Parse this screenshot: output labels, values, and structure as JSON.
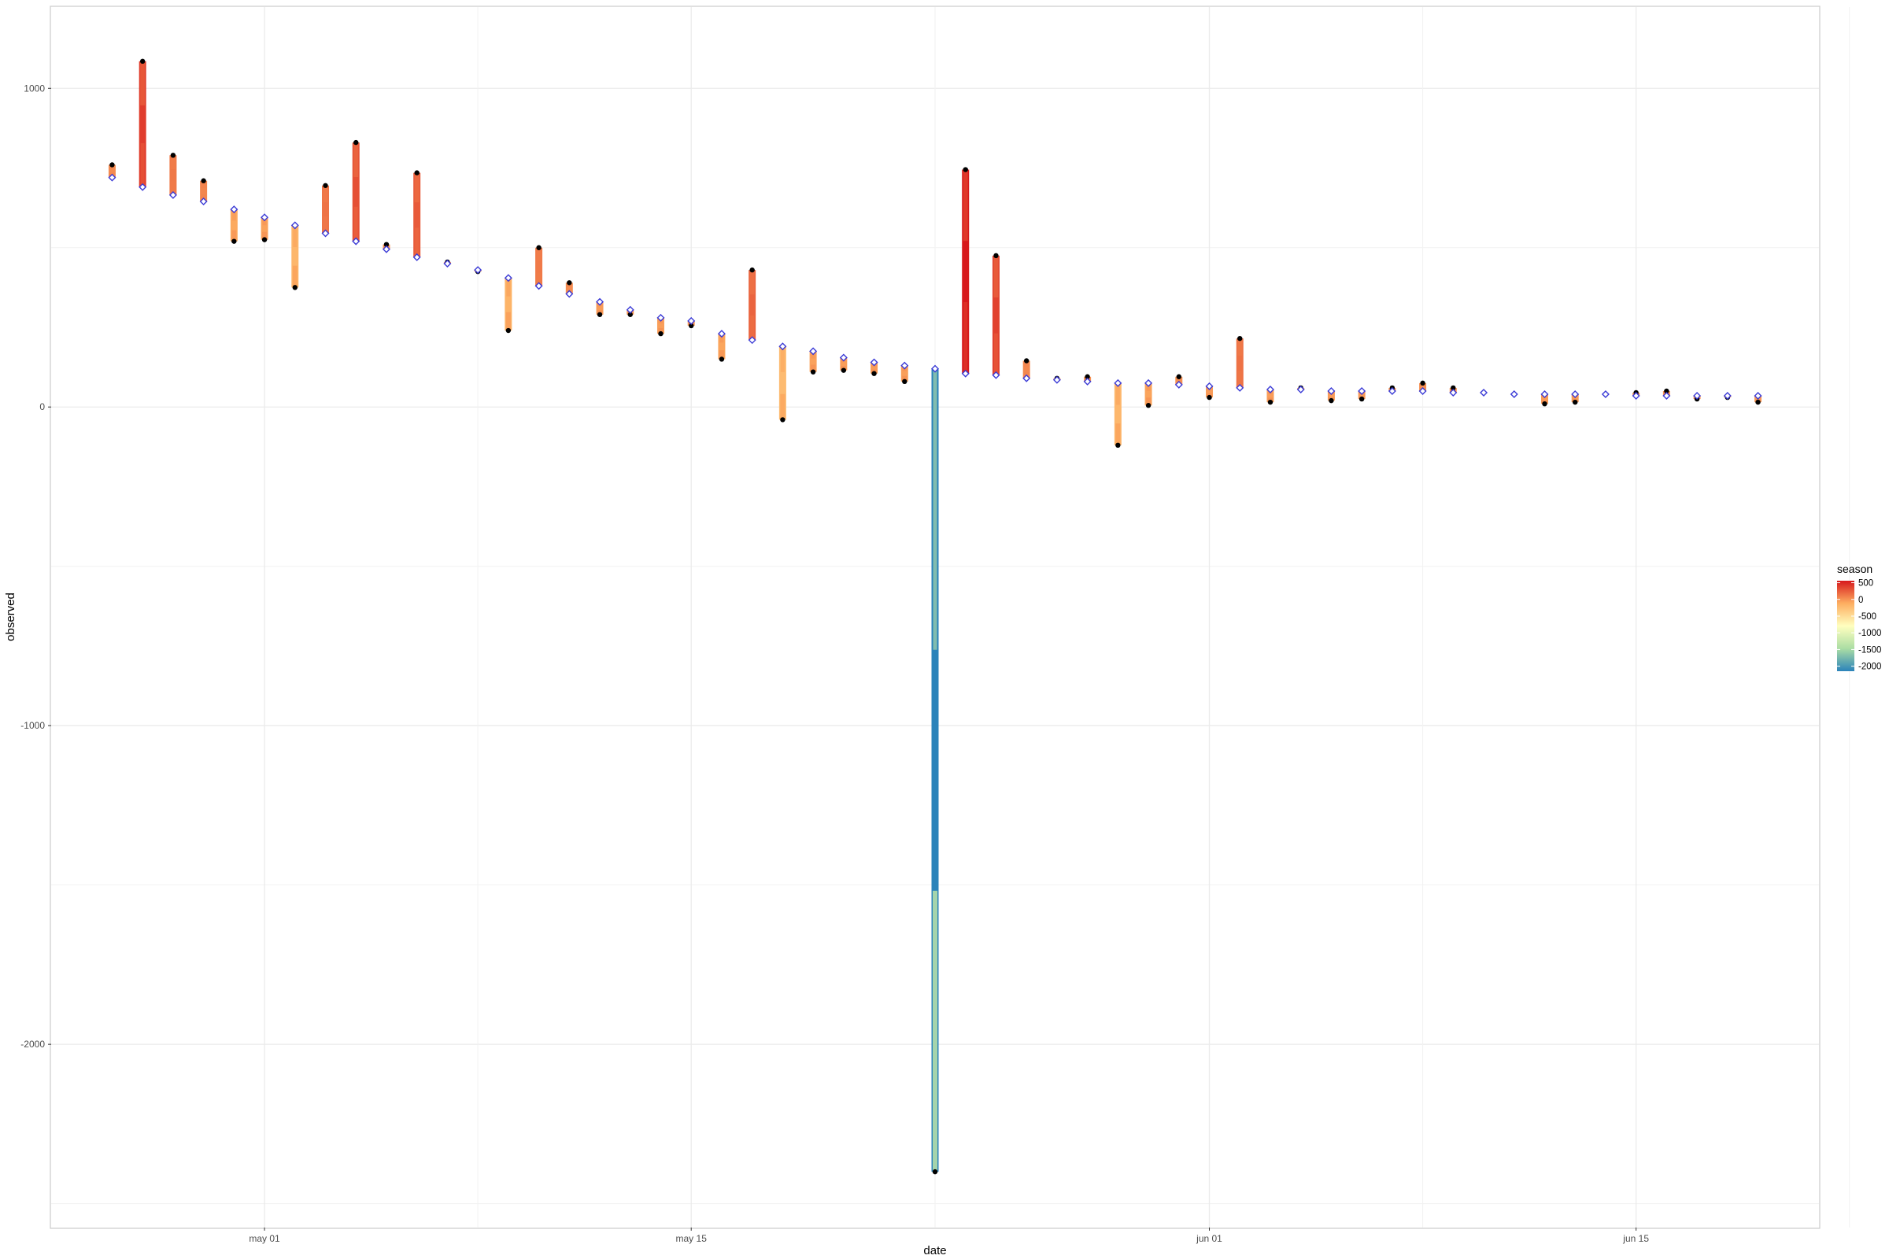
{
  "chart_data": {
    "type": "line",
    "xlabel": "date",
    "ylabel": "observed",
    "x_ticks": [
      "may 01",
      "may 15",
      "jun 01",
      "jun 15"
    ],
    "y_ticks": [
      "-2000",
      "-1000",
      "0",
      "1000"
    ],
    "y_tick_values": [
      -2000,
      -1000,
      0,
      1000
    ],
    "x_range": [
      "2025-04-24",
      "2025-06-21"
    ],
    "ylim": [
      -2575,
      1255
    ],
    "grid": true,
    "legend": {
      "title": "season",
      "position": "right",
      "labels": [
        "500",
        "0",
        "-500",
        "-1000",
        "-1500",
        "-2000"
      ],
      "values": [
        500,
        0,
        -500,
        -1000,
        -1500,
        -2000
      ],
      "range": [
        -2150,
        560
      ],
      "colors": [
        "#d7191c",
        "#fdae61",
        "#ffffbf",
        "#abdda4",
        "#2b83ba"
      ]
    },
    "colors": {
      "observed_point": "#000000",
      "trend_point": "#3b3bd6",
      "trend_point_fill": "#ffffff"
    },
    "series": [
      {
        "date": "2025-04-26",
        "observed": 760,
        "trend": 720,
        "season": 40
      },
      {
        "date": "2025-04-27",
        "observed": 1085,
        "trend": 690,
        "season": 395
      },
      {
        "date": "2025-04-28",
        "observed": 790,
        "trend": 665,
        "season": 125
      },
      {
        "date": "2025-04-29",
        "observed": 710,
        "trend": 645,
        "season": 65
      },
      {
        "date": "2025-04-30",
        "observed": 520,
        "trend": 620,
        "season": -100
      },
      {
        "date": "2025-05-01",
        "observed": 525,
        "trend": 595,
        "season": -70
      },
      {
        "date": "2025-05-02",
        "observed": 375,
        "trend": 570,
        "season": -195
      },
      {
        "date": "2025-05-03",
        "observed": 695,
        "trend": 545,
        "season": 150
      },
      {
        "date": "2025-05-04",
        "observed": 830,
        "trend": 520,
        "season": 310
      },
      {
        "date": "2025-05-05",
        "observed": 510,
        "trend": 495,
        "season": 15
      },
      {
        "date": "2025-05-06",
        "observed": 735,
        "trend": 470,
        "season": 265
      },
      {
        "date": "2025-05-07",
        "observed": 455,
        "trend": 450,
        "season": 5
      },
      {
        "date": "2025-05-08",
        "observed": 425,
        "trend": 430,
        "season": -5
      },
      {
        "date": "2025-05-09",
        "observed": 240,
        "trend": 405,
        "season": -165
      },
      {
        "date": "2025-05-10",
        "observed": 500,
        "trend": 380,
        "season": 120
      },
      {
        "date": "2025-05-11",
        "observed": 390,
        "trend": 355,
        "season": 35
      },
      {
        "date": "2025-05-12",
        "observed": 290,
        "trend": 330,
        "season": -40
      },
      {
        "date": "2025-05-13",
        "observed": 290,
        "trend": 305,
        "season": -15
      },
      {
        "date": "2025-05-14",
        "observed": 230,
        "trend": 280,
        "season": -50
      },
      {
        "date": "2025-05-15",
        "observed": 255,
        "trend": 270,
        "season": -15
      },
      {
        "date": "2025-05-16",
        "observed": 150,
        "trend": 230,
        "season": -80
      },
      {
        "date": "2025-05-17",
        "observed": 430,
        "trend": 210,
        "season": 220
      },
      {
        "date": "2025-05-18",
        "observed": -40,
        "trend": 190,
        "season": -230
      },
      {
        "date": "2025-05-19",
        "observed": 110,
        "trend": 175,
        "season": -65
      },
      {
        "date": "2025-05-20",
        "observed": 115,
        "trend": 155,
        "season": -40
      },
      {
        "date": "2025-05-21",
        "observed": 105,
        "trend": 140,
        "season": -35
      },
      {
        "date": "2025-05-22",
        "observed": 80,
        "trend": 130,
        "season": -50
      },
      {
        "date": "2025-05-23",
        "observed": -2400,
        "trend": 120,
        "season": -2520
      },
      {
        "date": "2025-05-24",
        "observed": 745,
        "trend": 105,
        "season": 640
      },
      {
        "date": "2025-05-25",
        "observed": 475,
        "trend": 100,
        "season": 375
      },
      {
        "date": "2025-05-26",
        "observed": 145,
        "trend": 90,
        "season": 55
      },
      {
        "date": "2025-05-27",
        "observed": 90,
        "trend": 85,
        "season": 5
      },
      {
        "date": "2025-05-28",
        "observed": 95,
        "trend": 80,
        "season": 15
      },
      {
        "date": "2025-05-29",
        "observed": -120,
        "trend": 75,
        "season": -195
      },
      {
        "date": "2025-05-30",
        "observed": 5,
        "trend": 75,
        "season": -70
      },
      {
        "date": "2025-05-31",
        "observed": 95,
        "trend": 70,
        "season": 25
      },
      {
        "date": "2025-06-01",
        "observed": 30,
        "trend": 65,
        "season": -35
      },
      {
        "date": "2025-06-02",
        "observed": 215,
        "trend": 60,
        "season": 155
      },
      {
        "date": "2025-06-03",
        "observed": 15,
        "trend": 55,
        "season": -40
      },
      {
        "date": "2025-06-04",
        "observed": 60,
        "trend": 55,
        "season": 5
      },
      {
        "date": "2025-06-05",
        "observed": 20,
        "trend": 50,
        "season": -30
      },
      {
        "date": "2025-06-06",
        "observed": 25,
        "trend": 50,
        "season": -25
      },
      {
        "date": "2025-06-07",
        "observed": 60,
        "trend": 50,
        "season": 10
      },
      {
        "date": "2025-06-08",
        "observed": 75,
        "trend": 50,
        "season": 25
      },
      {
        "date": "2025-06-09",
        "observed": 60,
        "trend": 45,
        "season": 15
      },
      {
        "date": "2025-06-10",
        "observed": 45,
        "trend": 45,
        "season": 0
      },
      {
        "date": "2025-06-11",
        "observed": 40,
        "trend": 40,
        "season": 0
      },
      {
        "date": "2025-06-12",
        "observed": 10,
        "trend": 40,
        "season": -30
      },
      {
        "date": "2025-06-13",
        "observed": 15,
        "trend": 40,
        "season": -25
      },
      {
        "date": "2025-06-14",
        "observed": 40,
        "trend": 40,
        "season": 0
      },
      {
        "date": "2025-06-15",
        "observed": 45,
        "trend": 35,
        "season": 10
      },
      {
        "date": "2025-06-16",
        "observed": 50,
        "trend": 35,
        "season": 15
      },
      {
        "date": "2025-06-17",
        "observed": 25,
        "trend": 35,
        "season": -10
      },
      {
        "date": "2025-06-18",
        "observed": 30,
        "trend": 35,
        "season": -5
      },
      {
        "date": "2025-06-19",
        "observed": 15,
        "trend": 35,
        "season": -20
      }
    ]
  }
}
